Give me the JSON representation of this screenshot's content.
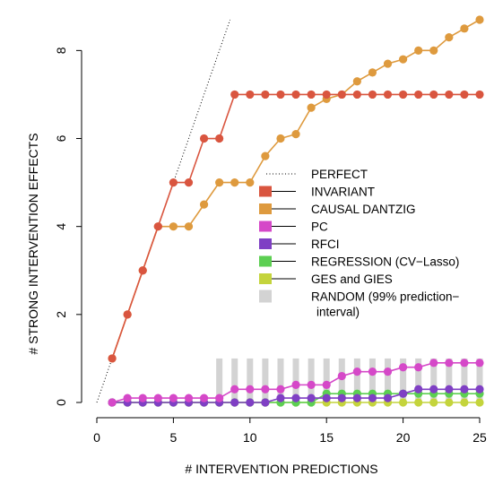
{
  "chart_data": {
    "type": "line",
    "xlabel": "# INTERVENTION PREDICTIONS",
    "ylabel": "# STRONG INTERVENTION EFFECTS",
    "xlim": [
      0,
      25
    ],
    "ylim": [
      0,
      8.7
    ],
    "x_ticks": [
      "0",
      "5",
      "10",
      "15",
      "20",
      "25"
    ],
    "y_ticks": [
      "0",
      "2",
      "4",
      "6",
      "8"
    ],
    "x": [
      1,
      2,
      3,
      4,
      5,
      6,
      7,
      8,
      9,
      10,
      11,
      12,
      13,
      14,
      15,
      16,
      17,
      18,
      19,
      20,
      21,
      22,
      23,
      24,
      25
    ],
    "perfect": {
      "name": "PERFECT",
      "style": "dotted",
      "color": "#000000",
      "slope": 1
    },
    "series": [
      {
        "name": "INVARIANT",
        "color": "#D9553F",
        "values": [
          1,
          2,
          3,
          4,
          5,
          5,
          6,
          6,
          7,
          7,
          7,
          7,
          7,
          7,
          7,
          7,
          7,
          7,
          7,
          7,
          7,
          7,
          7,
          7,
          7
        ]
      },
      {
        "name": "CAUSAL DANTZIG",
        "color": "#DE9A3E",
        "values": [
          1,
          2,
          3,
          4,
          4,
          4,
          4.5,
          5,
          5,
          5,
          5.6,
          6,
          6.1,
          6.7,
          6.9,
          7,
          7.3,
          7.5,
          7.7,
          7.8,
          8,
          8,
          8.3,
          8.5,
          8.7
        ]
      },
      {
        "name": "PC",
        "color": "#D548C8",
        "values": [
          0,
          0.1,
          0.1,
          0.1,
          0.1,
          0.1,
          0.1,
          0.1,
          0.3,
          0.3,
          0.3,
          0.3,
          0.4,
          0.4,
          0.4,
          0.6,
          0.7,
          0.7,
          0.7,
          0.8,
          0.8,
          0.9,
          0.9,
          0.9,
          0.9
        ]
      },
      {
        "name": "RFCI",
        "color": "#7F3FC4",
        "values": [
          0,
          0,
          0,
          0,
          0,
          0,
          0,
          0,
          0,
          0,
          0,
          0.1,
          0.1,
          0.1,
          0.1,
          0.1,
          0.1,
          0.1,
          0.1,
          0.2,
          0.3,
          0.3,
          0.3,
          0.3,
          0.3
        ]
      },
      {
        "name": "REGRESSION (CV−Lasso)",
        "color": "#5CCF52",
        "values": [
          0,
          0,
          0,
          0,
          0,
          0,
          0,
          0,
          0,
          0,
          0,
          0,
          0,
          0,
          0.2,
          0.2,
          0.2,
          0.2,
          0.2,
          0.2,
          0.2,
          0.2,
          0.2,
          0.2,
          0.2
        ]
      },
      {
        "name": "GES and GIES",
        "color": "#C4D43C",
        "values": [
          0,
          0,
          0,
          0,
          0,
          0,
          0,
          0,
          0,
          0,
          0,
          0,
          0,
          0,
          0,
          0,
          0,
          0,
          0,
          0,
          0,
          0,
          0,
          0,
          0
        ]
      }
    ],
    "random_interval": {
      "name_line1": "RANDOM (99% prediction−",
      "name_line2": "interval)",
      "color": "#D3D3D3",
      "x": [
        8,
        9,
        10,
        11,
        12,
        13,
        14,
        15,
        16,
        17,
        18,
        19,
        20,
        21,
        22,
        23,
        24,
        25
      ],
      "upper": [
        1,
        1,
        1,
        1,
        1,
        1,
        1,
        1,
        1,
        1,
        1,
        1,
        1,
        1,
        1,
        1,
        1,
        1
      ]
    },
    "legend_position": "right"
  }
}
